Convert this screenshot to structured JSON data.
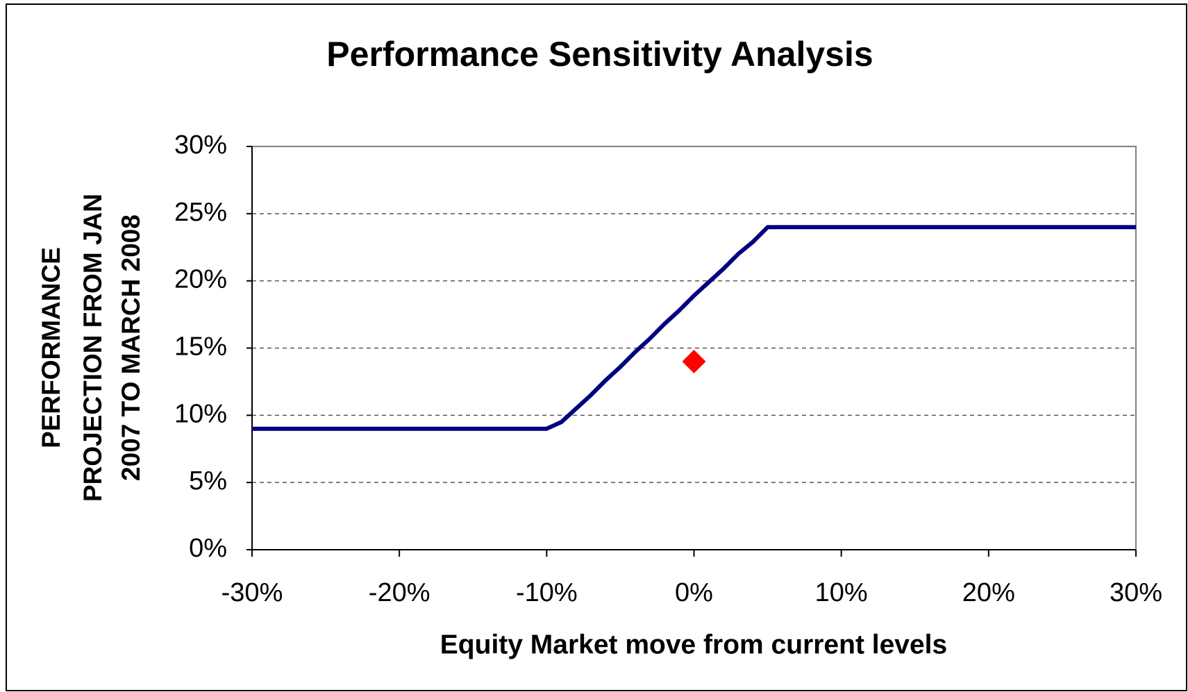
{
  "chart_data": {
    "type": "line",
    "title": "Performance Sensitivity Analysis",
    "x_label": "Equity Market move from current levels",
    "y_label": [
      "PERFORMANCE",
      "PROJECTION FROM JAN",
      "2007 TO MARCH 2008"
    ],
    "xlim": [
      -30,
      30
    ],
    "ylim": [
      0,
      30
    ],
    "xticks": [
      {
        "value": -30,
        "label": "-30%"
      },
      {
        "value": -20,
        "label": "-20%"
      },
      {
        "value": -10,
        "label": "-10%"
      },
      {
        "value": 0,
        "label": "0%"
      },
      {
        "value": 10,
        "label": "10%"
      },
      {
        "value": 20,
        "label": "20%"
      },
      {
        "value": 30,
        "label": "30%"
      }
    ],
    "yticks": [
      {
        "value": 0,
        "label": "0%"
      },
      {
        "value": 5,
        "label": "5%"
      },
      {
        "value": 10,
        "label": "10%"
      },
      {
        "value": 15,
        "label": "15%"
      },
      {
        "value": 20,
        "label": "20%"
      },
      {
        "value": 25,
        "label": "25%"
      },
      {
        "value": 30,
        "label": "30%"
      }
    ],
    "grid": true,
    "series": [
      {
        "color": "#000080",
        "marker": "none",
        "x": [
          -30,
          -10,
          -9,
          -8,
          -7,
          -6,
          -5,
          -4,
          -3,
          -2,
          -1,
          0,
          1,
          2,
          3,
          4,
          5,
          30
        ],
        "values": [
          9,
          9,
          9.5,
          10.5,
          11.5,
          12.6,
          13.6,
          14.7,
          15.7,
          16.8,
          17.8,
          18.9,
          19.9,
          20.9,
          22,
          22.9,
          24,
          24
        ]
      },
      {
        "color": "#ff0000",
        "marker": "diamond",
        "x": [
          0
        ],
        "values": [
          14
        ]
      }
    ]
  }
}
